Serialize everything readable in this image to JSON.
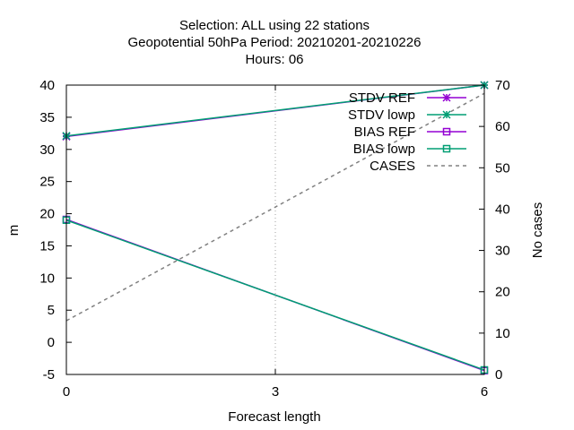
{
  "header": {
    "line1": "Selection: ALL using    22 stations",
    "line2": "Geopotential 50hPa   Period: 20210201-20210226",
    "line3": "Hours:  06"
  },
  "chart_data": {
    "type": "line",
    "xlabel": "Forecast length",
    "ylabel": "m",
    "y2label": "No cases",
    "xlim": [
      0,
      6
    ],
    "ylim": [
      -5,
      40
    ],
    "y2lim": [
      0,
      70
    ],
    "xticks": [
      0,
      3,
      6
    ],
    "yticks": [
      -5,
      0,
      5,
      10,
      15,
      20,
      25,
      30,
      35,
      40
    ],
    "y2ticks": [
      0,
      10,
      20,
      30,
      40,
      50,
      60,
      70
    ],
    "grid": "x-only",
    "legend_position": "top-right",
    "series": [
      {
        "name": "STDV REF",
        "axis": "y",
        "color": "#9400d3",
        "style": "solid",
        "marker": "star",
        "x": [
          0,
          6
        ],
        "values": [
          32.0,
          40.0
        ]
      },
      {
        "name": "STDV lowp",
        "axis": "y",
        "color": "#009e73",
        "style": "solid",
        "marker": "star",
        "x": [
          0,
          6
        ],
        "values": [
          32.1,
          40.0
        ]
      },
      {
        "name": "BIAS REF",
        "axis": "y",
        "color": "#9400d3",
        "style": "solid",
        "marker": "square",
        "x": [
          0,
          6
        ],
        "values": [
          19.1,
          -4.4
        ]
      },
      {
        "name": "BIAS lowp",
        "axis": "y",
        "color": "#009e73",
        "style": "solid",
        "marker": "square",
        "x": [
          0,
          6
        ],
        "values": [
          19.0,
          -4.3
        ]
      },
      {
        "name": "CASES",
        "axis": "y2",
        "color": "#808080",
        "style": "dashed",
        "marker": "none",
        "x": [
          0,
          6
        ],
        "values": [
          13,
          68
        ]
      }
    ]
  }
}
